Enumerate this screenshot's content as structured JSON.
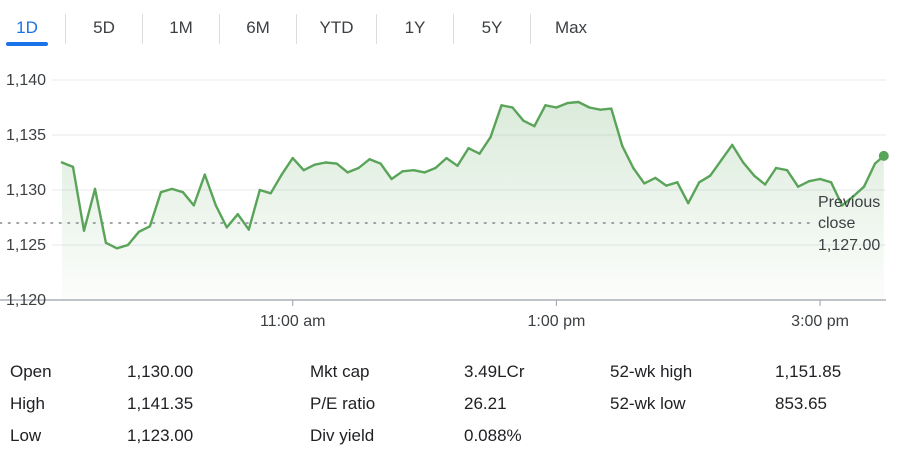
{
  "tabs": [
    {
      "label": "1D",
      "active": true
    },
    {
      "label": "5D",
      "active": false
    },
    {
      "label": "1M",
      "active": false
    },
    {
      "label": "6M",
      "active": false
    },
    {
      "label": "YTD",
      "active": false
    },
    {
      "label": "1Y",
      "active": false
    },
    {
      "label": "5Y",
      "active": false
    },
    {
      "label": "Max",
      "active": false
    }
  ],
  "colors": {
    "line": "#5aa45a",
    "accent": "#1a73e8",
    "grid": "#e8eaed",
    "axis": "#9aa0a6",
    "text": "#3c4043"
  },
  "chart_data": {
    "type": "area",
    "ylim": [
      1120,
      1140
    ],
    "yticks": [
      "1,140",
      "1,135",
      "1,130",
      "1,125",
      "1,120"
    ],
    "ytick_values": [
      1140,
      1135,
      1130,
      1125,
      1120
    ],
    "xlim": [
      "09:15",
      "15:30"
    ],
    "xticks": [
      {
        "label": "11:00 am",
        "time": "11:00"
      },
      {
        "label": "1:00 pm",
        "time": "13:00"
      },
      {
        "label": "3:00 pm",
        "time": "15:00"
      }
    ],
    "previous_close": {
      "value": 1127.0,
      "label_line1": "Previous",
      "label_line2": "close",
      "value_label": "1,127.00"
    },
    "series": [
      {
        "values": [
          [
            "09:15",
            1132.5
          ],
          [
            "09:20",
            1132.1
          ],
          [
            "09:25",
            1126.3
          ],
          [
            "09:30",
            1130.1
          ],
          [
            "09:35",
            1125.2
          ],
          [
            "09:40",
            1124.7
          ],
          [
            "09:45",
            1125.0
          ],
          [
            "09:50",
            1126.2
          ],
          [
            "09:55",
            1126.7
          ],
          [
            "10:00",
            1129.8
          ],
          [
            "10:05",
            1130.1
          ],
          [
            "10:10",
            1129.8
          ],
          [
            "10:15",
            1128.6
          ],
          [
            "10:20",
            1131.4
          ],
          [
            "10:25",
            1128.6
          ],
          [
            "10:30",
            1126.6
          ],
          [
            "10:35",
            1127.8
          ],
          [
            "10:40",
            1126.4
          ],
          [
            "10:45",
            1130.0
          ],
          [
            "10:50",
            1129.7
          ],
          [
            "10:55",
            1131.4
          ],
          [
            "11:00",
            1132.9
          ],
          [
            "11:05",
            1131.8
          ],
          [
            "11:10",
            1132.3
          ],
          [
            "11:15",
            1132.5
          ],
          [
            "11:20",
            1132.4
          ],
          [
            "11:25",
            1131.6
          ],
          [
            "11:30",
            1132.0
          ],
          [
            "11:35",
            1132.8
          ],
          [
            "11:40",
            1132.4
          ],
          [
            "11:45",
            1131.0
          ],
          [
            "11:50",
            1131.7
          ],
          [
            "11:55",
            1131.8
          ],
          [
            "12:00",
            1131.6
          ],
          [
            "12:05",
            1132.0
          ],
          [
            "12:10",
            1132.9
          ],
          [
            "12:15",
            1132.2
          ],
          [
            "12:20",
            1133.8
          ],
          [
            "12:25",
            1133.3
          ],
          [
            "12:30",
            1134.8
          ],
          [
            "12:35",
            1137.7
          ],
          [
            "12:40",
            1137.5
          ],
          [
            "12:45",
            1136.3
          ],
          [
            "12:50",
            1135.8
          ],
          [
            "12:55",
            1137.7
          ],
          [
            "13:00",
            1137.5
          ],
          [
            "13:05",
            1137.9
          ],
          [
            "13:10",
            1138.0
          ],
          [
            "13:15",
            1137.5
          ],
          [
            "13:20",
            1137.3
          ],
          [
            "13:25",
            1137.4
          ],
          [
            "13:30",
            1134.0
          ],
          [
            "13:35",
            1132.0
          ],
          [
            "13:40",
            1130.6
          ],
          [
            "13:45",
            1131.1
          ],
          [
            "13:50",
            1130.4
          ],
          [
            "13:55",
            1130.7
          ],
          [
            "14:00",
            1128.8
          ],
          [
            "14:05",
            1130.7
          ],
          [
            "14:10",
            1131.3
          ],
          [
            "14:15",
            1132.7
          ],
          [
            "14:20",
            1134.1
          ],
          [
            "14:25",
            1132.5
          ],
          [
            "14:30",
            1131.3
          ],
          [
            "14:35",
            1130.5
          ],
          [
            "14:40",
            1132.0
          ],
          [
            "14:45",
            1131.8
          ],
          [
            "14:50",
            1130.3
          ],
          [
            "14:55",
            1130.8
          ],
          [
            "15:00",
            1131.0
          ],
          [
            "15:05",
            1130.7
          ],
          [
            "15:10",
            1128.6
          ],
          [
            "15:15",
            1129.4
          ],
          [
            "15:20",
            1130.3
          ],
          [
            "15:25",
            1132.4
          ],
          [
            "15:29",
            1133.1
          ]
        ]
      }
    ]
  },
  "stats": {
    "open": {
      "label": "Open",
      "value": "1,130.00"
    },
    "high": {
      "label": "High",
      "value": "1,141.35"
    },
    "low": {
      "label": "Low",
      "value": "1,123.00"
    },
    "mkt_cap": {
      "label": "Mkt cap",
      "value": "3.49LCr"
    },
    "pe_ratio": {
      "label": "P/E ratio",
      "value": "26.21"
    },
    "div_yield": {
      "label": "Div yield",
      "value": "0.088%"
    },
    "wk52_high": {
      "label": "52-wk high",
      "value": "1,151.85"
    },
    "wk52_low": {
      "label": "52-wk low",
      "value": "853.65"
    }
  }
}
